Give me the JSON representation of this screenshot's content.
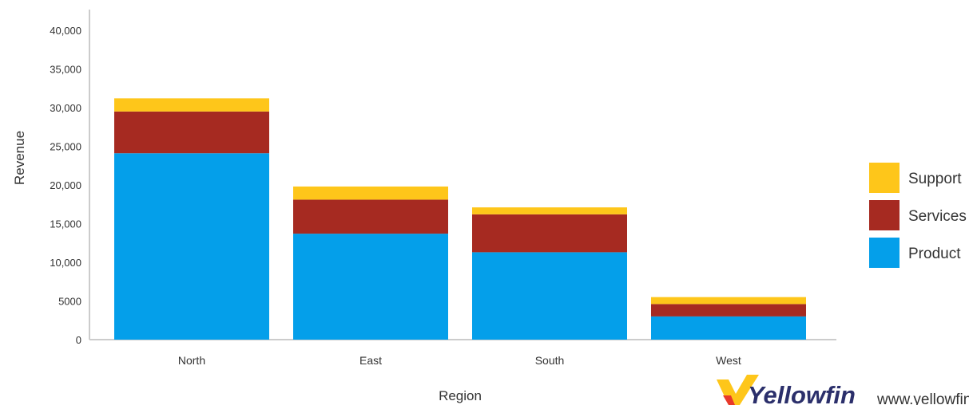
{
  "chart_data": {
    "type": "bar",
    "stacked": true,
    "categories": [
      "North",
      "East",
      "South",
      "West"
    ],
    "series": [
      {
        "name": "Product",
        "color": "#049fea",
        "values": [
          24100,
          13700,
          11300,
          3000
        ]
      },
      {
        "name": "Services",
        "color": "#a62a21",
        "values": [
          5400,
          4400,
          4900,
          1600
        ]
      },
      {
        "name": "Support",
        "color": "#fec61a",
        "values": [
          1700,
          1700,
          900,
          900
        ]
      }
    ],
    "y_ticks": [
      "0",
      "5000",
      "10,000",
      "15,000",
      "20,000",
      "25,000",
      "30,000",
      "35,000",
      "40,000"
    ],
    "ylim": [
      0,
      40000
    ],
    "xlabel": "Region",
    "ylabel": "Revenue",
    "legend_order": [
      "Support",
      "Services",
      "Product"
    ],
    "legend_position": "right",
    "grid": false
  },
  "branding": {
    "logo_text": "Yellowfin",
    "url_text": "www.yellowfinbi.com",
    "logo_icon": "yellowfin-logo-icon"
  }
}
